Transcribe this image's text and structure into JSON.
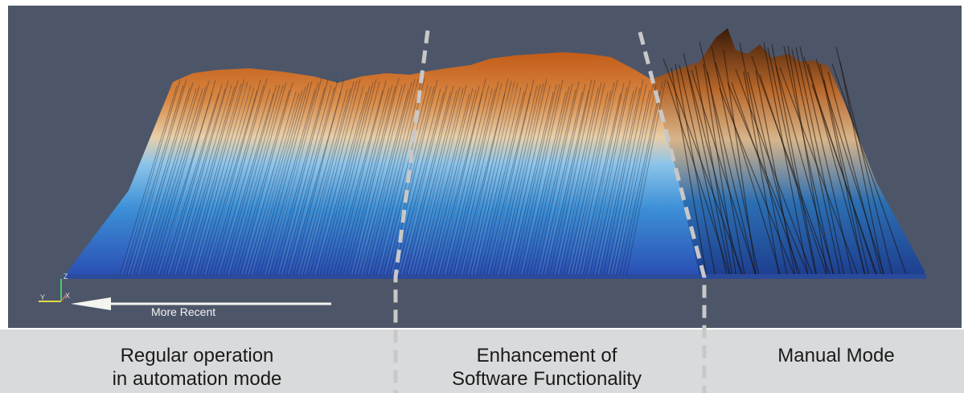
{
  "viewport": {
    "arrow_label": "More Recent",
    "axes": {
      "z": "Z",
      "x": "X",
      "y": "Y"
    }
  },
  "captions": {
    "regular": {
      "line1": "Regular operation",
      "line2": "in automation mode"
    },
    "enhancement": {
      "line1": "Enhancement of",
      "line2": "Software Functionality"
    },
    "manual": {
      "line1": "Manual Mode"
    }
  },
  "colors": {
    "background": "#4d5669",
    "caption_band": "#d9dadb",
    "surface_low": "#2f55b8",
    "surface_mid": "#6fb2e6",
    "surface_high": "#c9661f",
    "divider": "#c8c8c8"
  }
}
